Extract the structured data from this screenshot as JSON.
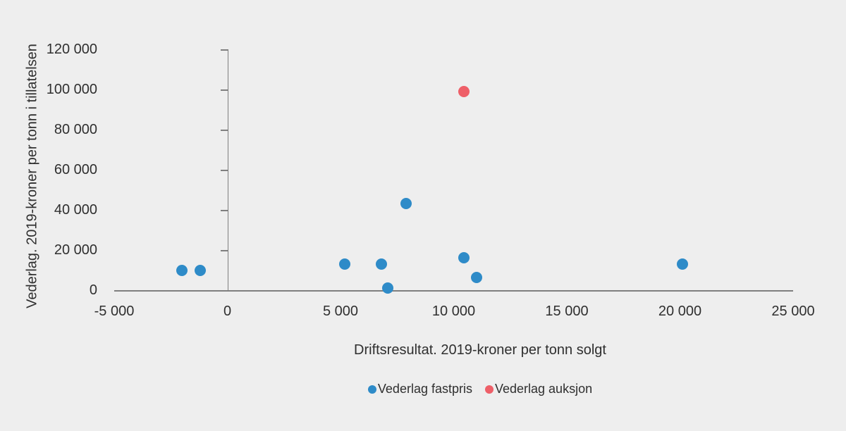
{
  "figure": {
    "background_color": "#eeeeee",
    "text_color": "#2f2f2f",
    "axis_line_color": "#7f7f7f"
  },
  "chart_data": {
    "type": "scatter",
    "title": "",
    "xlabel": "Driftsresultat. 2019-kroner per tonn solgt",
    "ylabel": "Vederlag. 2019-kroner per tonn i tillatelsen",
    "xlim": [
      -5000,
      25000
    ],
    "ylim": [
      0,
      120000
    ],
    "grid": false,
    "legend_position": "bottom-center",
    "x_ticks": [
      {
        "value": -5000,
        "label": "-5 000"
      },
      {
        "value": 0,
        "label": "0"
      },
      {
        "value": 5000,
        "label": "5 000"
      },
      {
        "value": 10000,
        "label": "10 000"
      },
      {
        "value": 15000,
        "label": "15 000"
      },
      {
        "value": 20000,
        "label": "20 000"
      },
      {
        "value": 25000,
        "label": "25 000"
      }
    ],
    "y_ticks": [
      {
        "value": 0,
        "label": "0"
      },
      {
        "value": 20000,
        "label": "20 000"
      },
      {
        "value": 40000,
        "label": "40 000"
      },
      {
        "value": 60000,
        "label": "60 000"
      },
      {
        "value": 80000,
        "label": "80 000"
      },
      {
        "value": 100000,
        "label": "100 000"
      },
      {
        "value": 120000,
        "label": "120 000"
      }
    ],
    "series": [
      {
        "name": "Vederlag fastpris",
        "color": "#2e8bc8",
        "points": [
          [
            -2000,
            10000
          ],
          [
            -1200,
            10000
          ],
          [
            5200,
            13000
          ],
          [
            6800,
            13000
          ],
          [
            7100,
            1000
          ],
          [
            7900,
            43000
          ],
          [
            10450,
            16000
          ],
          [
            11000,
            6300
          ],
          [
            20100,
            13000
          ]
        ]
      },
      {
        "name": "Vederlag auksjon",
        "color": "#ee5f68",
        "points": [
          [
            10450,
            99000
          ]
        ]
      }
    ]
  }
}
